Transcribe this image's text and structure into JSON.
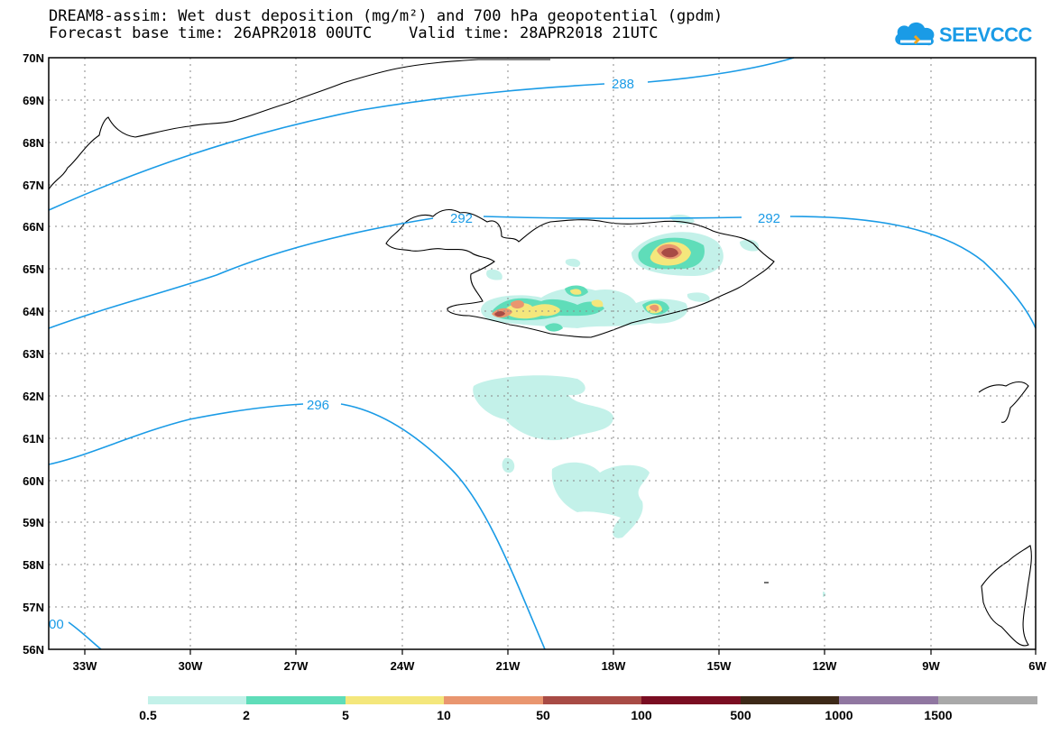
{
  "header": {
    "title_line1": "DREAM8-assim: Wet dust deposition (mg/m²) and 700 hPa geopotential (gpdm)",
    "title_line2": "Forecast base time: 26APR2018 00UTC    Valid time: 28APR2018 21UTC"
  },
  "logo": {
    "text": "SEEVCCC",
    "icon": "cloud-logo-icon",
    "color": "#1a9be6"
  },
  "map": {
    "lat_labels": [
      "70N",
      "69N",
      "68N",
      "67N",
      "66N",
      "65N",
      "64N",
      "63N",
      "62N",
      "61N",
      "60N",
      "59N",
      "58N",
      "57N",
      "56N"
    ],
    "lon_labels": [
      "33W",
      "30W",
      "27W",
      "24W",
      "21W",
      "18W",
      "15W",
      "12W",
      "9W",
      "6W"
    ],
    "contour_labels": [
      "288",
      "292",
      "292",
      "292",
      "296",
      "00"
    ],
    "contour_color": "#1a9be6"
  },
  "legend": {
    "labels": [
      "0.5",
      "2",
      "5",
      "10",
      "50",
      "100",
      "500",
      "1000",
      "1500"
    ],
    "colors": [
      "#c3f1e9",
      "#5fddb9",
      "#f4e77c",
      "#e9966f",
      "#a84b45",
      "#7a0d22",
      "#3d2918",
      "#9077a1",
      "#a9a9a9"
    ]
  }
}
